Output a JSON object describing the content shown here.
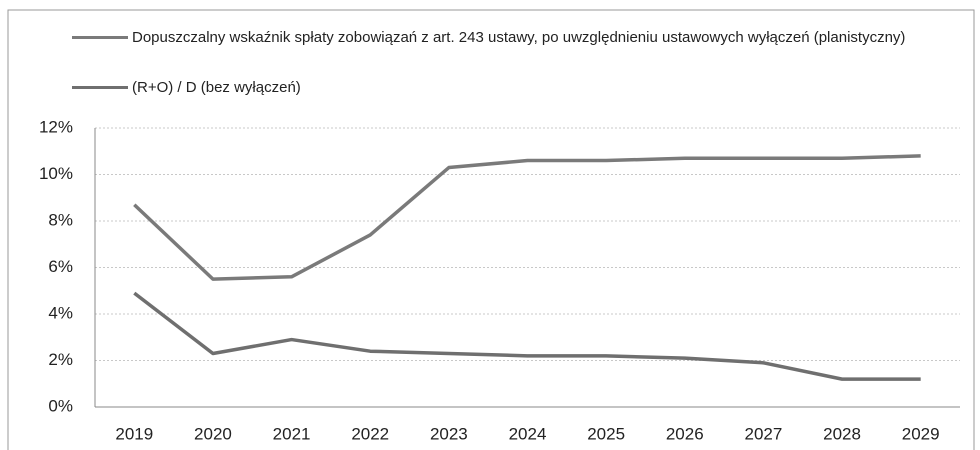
{
  "chart_data": {
    "type": "line",
    "categories": [
      "2019",
      "2020",
      "2021",
      "2022",
      "2023",
      "2024",
      "2025",
      "2026",
      "2027",
      "2028",
      "2029"
    ],
    "series": [
      {
        "name": "Dopuszczalny wskaźnik spłaty zobowiązań z art. 243 ustawy, po uwzględnieniu ustawowych wyłączeń (planistyczny)",
        "color": "#7a7a7a",
        "values": [
          8.7,
          5.5,
          5.6,
          7.4,
          10.3,
          10.6,
          10.6,
          10.7,
          10.7,
          10.7,
          10.8
        ]
      },
      {
        "name": "(R+O) / D (bez wyłączeń)",
        "color": "#6f6f6f",
        "values": [
          4.9,
          2.3,
          2.9,
          2.4,
          2.3,
          2.2,
          2.2,
          2.1,
          1.9,
          1.2,
          1.2
        ]
      }
    ],
    "ylim": [
      0,
      12
    ],
    "yticks": [
      {
        "value": 0,
        "label": "0%"
      },
      {
        "value": 2,
        "label": "2%"
      },
      {
        "value": 4,
        "label": "4%"
      },
      {
        "value": 6,
        "label": "6%"
      },
      {
        "value": 8,
        "label": "8%"
      },
      {
        "value": 10,
        "label": "10%"
      },
      {
        "value": 12,
        "label": "12%"
      }
    ],
    "grid": true
  }
}
